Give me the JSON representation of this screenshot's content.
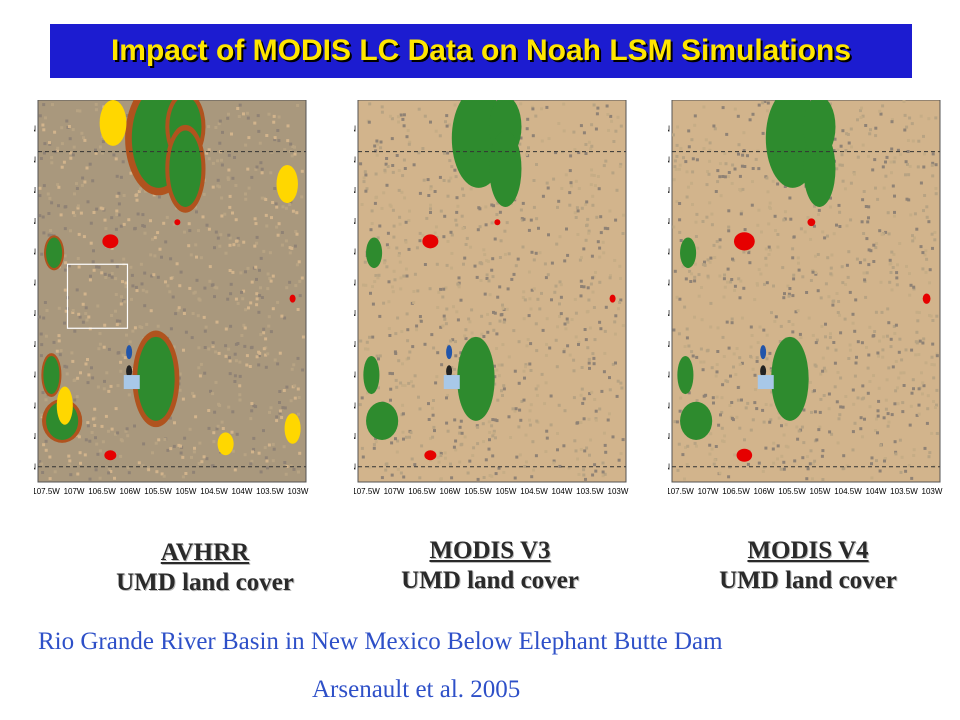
{
  "title": "Impact of MODIS LC Data on Noah LSM Simulations",
  "maps": [
    {
      "name": "AVHRR",
      "subtitle": "UMD land cover",
      "highlight_box": true
    },
    {
      "name": "MODIS V3",
      "subtitle": "UMD land cover",
      "highlight_box": false
    },
    {
      "name": "MODIS V4",
      "subtitle": "UMD land cover",
      "highlight_box": false
    }
  ],
  "lat_ticks": [
    "37.5N",
    "37N",
    "36.5N",
    "36N",
    "35.5N",
    "35N",
    "34.5N",
    "34N",
    "33.5N",
    "33N",
    "32.5N",
    "32N"
  ],
  "lon_ticks": [
    "107.5W",
    "107W",
    "106.5W",
    "106W",
    "105.5W",
    "105W",
    "104.5W",
    "104W",
    "103.5W",
    "103W"
  ],
  "legend_colors": {
    "shrubland": "#d2b48c",
    "grassland": "#b7a383",
    "bare": "#8f8275",
    "forest": "#2e8b2e",
    "woodland": "#b0531e",
    "cropland": "#ffd700",
    "urban": "#e60000",
    "water": "#a8c8e8"
  },
  "description_line": "Rio Grande River Basin in New Mexico Below Elephant Butte Dam",
  "citation": "Arsenault et al. 2005"
}
